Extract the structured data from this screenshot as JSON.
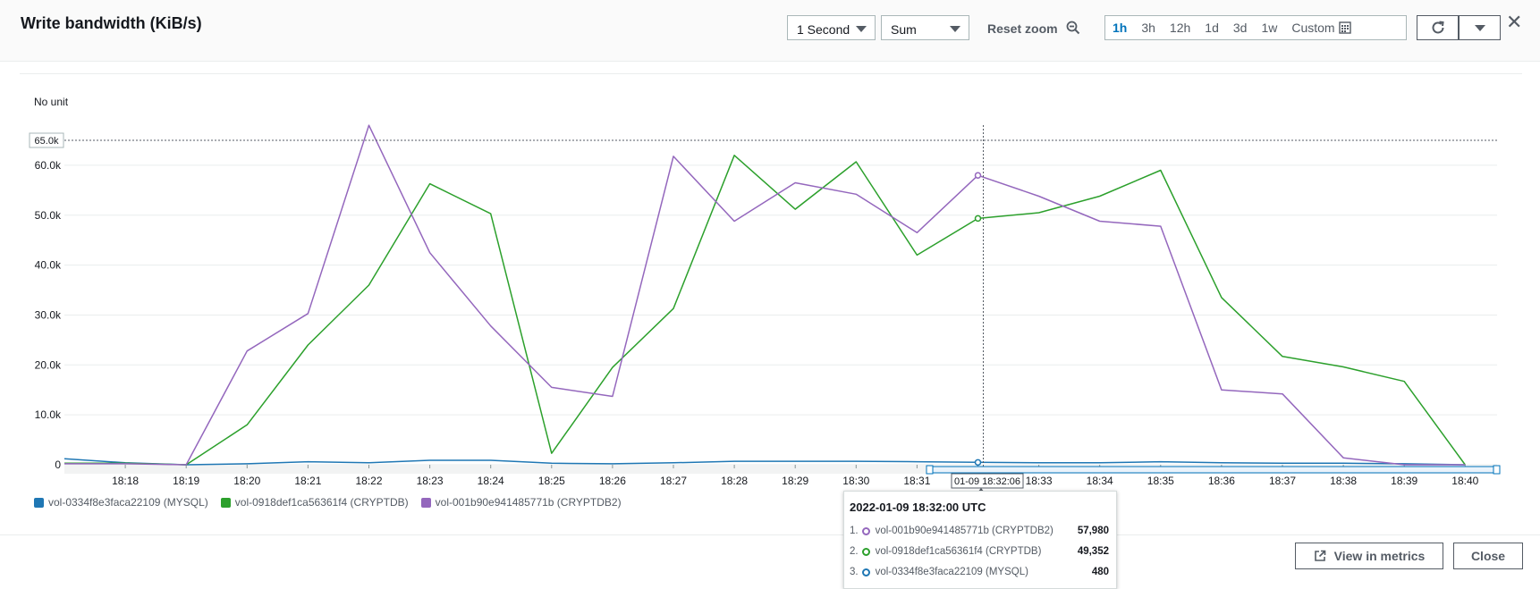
{
  "header": {
    "title": "Write bandwidth (KiB/s)",
    "period": "1 Second",
    "statistic": "Sum",
    "reset_zoom": "Reset zoom",
    "ranges": [
      "1h",
      "3h",
      "12h",
      "1d",
      "3d",
      "1w",
      "Custom"
    ],
    "active_range": "1h"
  },
  "unit_label": "No unit",
  "crosshair": {
    "x_label": "01-09 18:32:06",
    "threshold_label": "65.0k"
  },
  "tooltip": {
    "title": "2022-01-09 18:32:00 UTC",
    "rows": [
      {
        "index": "1.",
        "name": "vol-001b90e941485771b (CRYPTDB2)",
        "value": "57,980",
        "color": "#9467bd"
      },
      {
        "index": "2.",
        "name": "vol-0918def1ca56361f4 (CRYPTDB)",
        "value": "49,352",
        "color": "#2ca02c"
      },
      {
        "index": "3.",
        "name": "vol-0334f8e3faca22109 (MYSQL)",
        "value": "480",
        "color": "#1f77b4"
      }
    ]
  },
  "buttons": {
    "view_in_metrics": "View in metrics",
    "close": "Close"
  },
  "chart_data": {
    "type": "line",
    "title": "Write bandwidth (KiB/s)",
    "ylabel": "No unit",
    "ylim": [
      0,
      65000
    ],
    "yticks": [
      0,
      10000,
      20000,
      30000,
      40000,
      50000,
      60000
    ],
    "ytick_labels": [
      "0",
      "10.0k",
      "20.0k",
      "30.0k",
      "40.0k",
      "50.0k",
      "60.0k"
    ],
    "x_tick_labels": [
      "18:18",
      "18:19",
      "18:20",
      "18:21",
      "18:22",
      "18:23",
      "18:24",
      "18:25",
      "18:26",
      "18:27",
      "18:28",
      "18:29",
      "18:30",
      "18:31",
      "18:32",
      "18:33",
      "18:34",
      "18:35",
      "18:36",
      "18:37",
      "18:38",
      "18:39",
      "18:40"
    ],
    "x": [
      "18:17",
      "18:18",
      "18:19",
      "18:20",
      "18:21",
      "18:22",
      "18:23",
      "18:24",
      "18:25",
      "18:26",
      "18:27",
      "18:28",
      "18:29",
      "18:30",
      "18:31",
      "18:32",
      "18:33",
      "18:34",
      "18:35",
      "18:36",
      "18:37",
      "18:38",
      "18:39",
      "18:40"
    ],
    "grid": true,
    "legend_position": "bottom-left",
    "series": [
      {
        "name": "vol-0334f8e3faca22109 (MYSQL)",
        "color": "#1f77b4",
        "values": [
          1200,
          400,
          0,
          200,
          600,
          400,
          900,
          900,
          300,
          200,
          400,
          700,
          700,
          700,
          600,
          480,
          400,
          400,
          600,
          400,
          300,
          300,
          200,
          0
        ]
      },
      {
        "name": "vol-0918def1ca56361f4 (CRYPTDB)",
        "color": "#2ca02c",
        "values": [
          300,
          300,
          0,
          8000,
          24000,
          36000,
          56300,
          50300,
          2300,
          19500,
          31300,
          62000,
          51200,
          60700,
          42000,
          49352,
          50500,
          53800,
          59000,
          33500,
          21700,
          19600,
          16700,
          0
        ]
      },
      {
        "name": "vol-001b90e941485771b (CRYPTDB2)",
        "color": "#9467bd",
        "values": [
          200,
          200,
          0,
          22800,
          30300,
          68000,
          42500,
          27800,
          15500,
          13700,
          61800,
          48800,
          56500,
          54200,
          46500,
          57980,
          53800,
          48800,
          47800,
          15000,
          14200,
          1400,
          0,
          0
        ]
      }
    ]
  }
}
